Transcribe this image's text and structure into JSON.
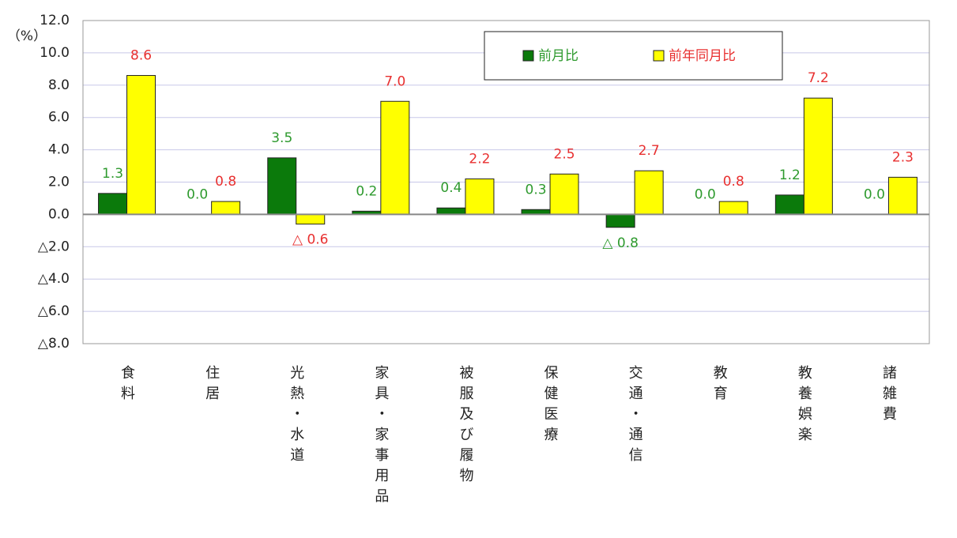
{
  "chart_data": {
    "type": "bar",
    "y_axis_label": "（%）",
    "categories": [
      "食料",
      "住居",
      "光熱・水道",
      "家具・家事用品",
      "被服及び履物",
      "保健医療",
      "交通・通信",
      "教育",
      "教養娯楽",
      "諸雑費"
    ],
    "series": [
      {
        "name": "前月比",
        "color": "#0b7a0b",
        "label_color": "#2e9a2e",
        "values": [
          1.3,
          0.0,
          3.5,
          0.2,
          0.4,
          0.3,
          -0.8,
          0.0,
          1.2,
          0.0
        ],
        "value_labels": [
          "1.3",
          "0.0",
          "3.5",
          "0.2",
          "0.4",
          "0.3",
          "△ 0.8",
          "0.0",
          "1.2",
          "0.0"
        ]
      },
      {
        "name": "前年同月比",
        "color": "#ffff00",
        "label_color": "#e83030",
        "values": [
          8.6,
          0.8,
          -0.6,
          7.0,
          2.2,
          2.5,
          2.7,
          0.8,
          7.2,
          2.3
        ],
        "value_labels": [
          "8.6",
          "0.8",
          "△ 0.6",
          "7.0",
          "2.2",
          "2.5",
          "2.7",
          "0.8",
          "7.2",
          "2.3"
        ]
      }
    ],
    "ylim": [
      -8,
      12
    ],
    "yticks": [
      {
        "value": 12,
        "label": "12.0"
      },
      {
        "value": 10,
        "label": "10.0"
      },
      {
        "value": 8,
        "label": "8.0"
      },
      {
        "value": 6,
        "label": "6.0"
      },
      {
        "value": 4,
        "label": "4.0"
      },
      {
        "value": 2,
        "label": "2.0"
      },
      {
        "value": 0,
        "label": "0.0"
      },
      {
        "value": -2,
        "label": "△2.0"
      },
      {
        "value": -4,
        "label": "△4.0"
      },
      {
        "value": -6,
        "label": "△6.0"
      },
      {
        "value": -8,
        "label": "△8.0"
      }
    ],
    "grid": true
  }
}
